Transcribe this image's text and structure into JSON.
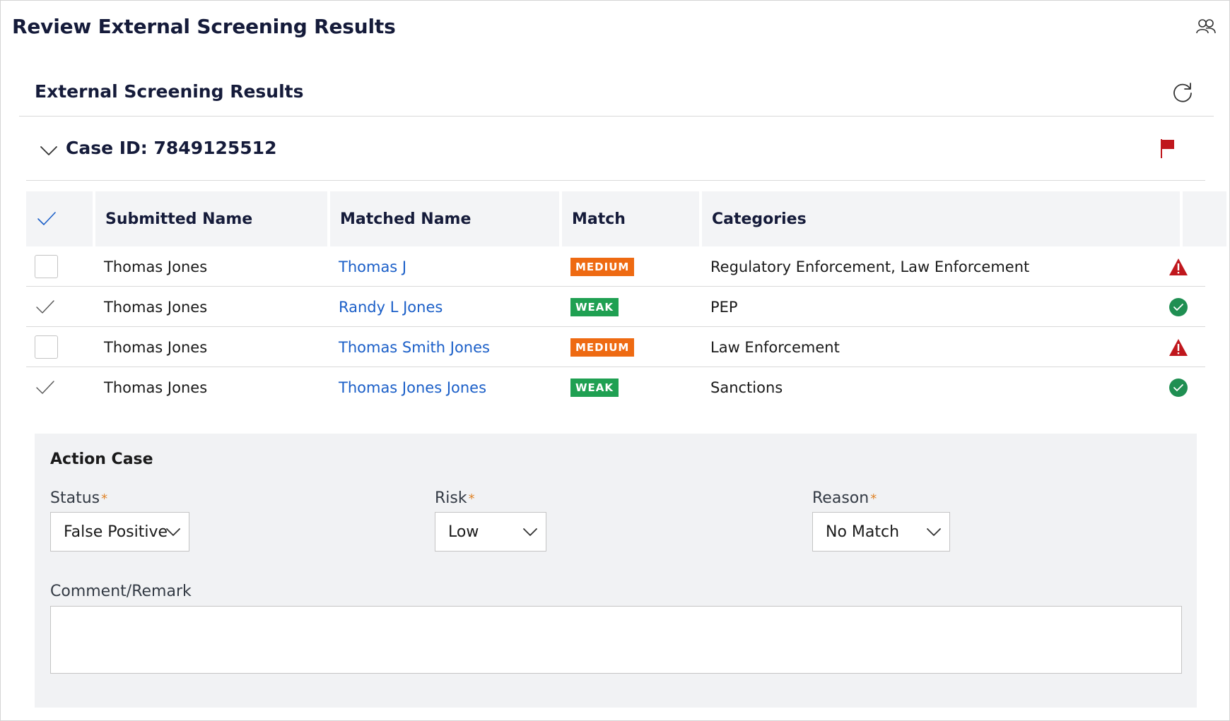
{
  "page": {
    "title": "Review External Screening Results"
  },
  "section": {
    "title": "External Screening Results"
  },
  "case": {
    "title": "Case ID: 7849125512"
  },
  "table": {
    "columns": [
      "Submitted Name",
      "Matched Name",
      "Match",
      "Categories"
    ],
    "rows": [
      {
        "selected": false,
        "submitted": "Thomas Jones",
        "matched": "Thomas J",
        "match": "MEDIUM",
        "categories": "Regulatory Enforcement, Law Enforcement",
        "status": "warning"
      },
      {
        "selected": true,
        "submitted": "Thomas Jones",
        "matched": "Randy L Jones",
        "match": "WEAK",
        "categories": "PEP",
        "status": "resolved"
      },
      {
        "selected": false,
        "submitted": "Thomas Jones",
        "matched": "Thomas Smith Jones",
        "match": "MEDIUM",
        "categories": "Law Enforcement",
        "status": "warning"
      },
      {
        "selected": true,
        "submitted": "Thomas Jones",
        "matched": "Thomas Jones Jones",
        "match": "WEAK",
        "categories": "Sanctions",
        "status": "resolved"
      }
    ]
  },
  "action": {
    "title": "Action Case",
    "status": {
      "label": "Status",
      "value": "False Positive"
    },
    "risk": {
      "label": "Risk",
      "value": "Low"
    },
    "reason": {
      "label": "Reason",
      "value": "No Match"
    },
    "comment": {
      "label": "Comment/Remark",
      "value": ""
    },
    "required_marker": "*"
  },
  "colors": {
    "link": "#1b5fc8",
    "medium_badge": "#ee6a12",
    "weak_badge": "#1fa052",
    "warning": "#c0171d",
    "resolved": "#1f8f52",
    "flag": "#c0171d"
  },
  "icons": {
    "header": "users-icon",
    "refresh": "refresh-icon",
    "toggle": "chevron-down-icon",
    "flag": "flag-icon",
    "warning": "warning-triangle-icon",
    "resolved": "check-circle-icon"
  }
}
